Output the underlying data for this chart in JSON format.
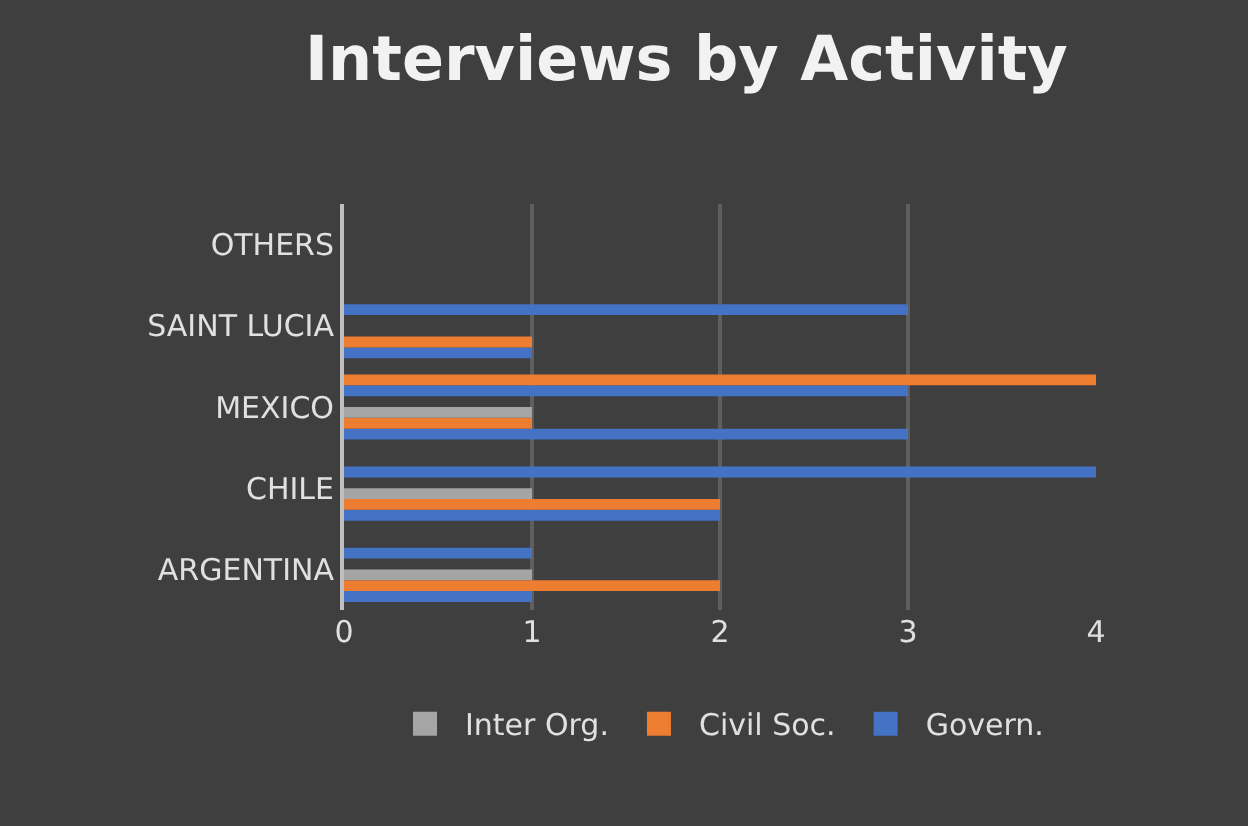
{
  "chart_data": {
    "type": "bar",
    "orientation": "horizontal",
    "title": "Interviews by Activity",
    "categories": [
      "OTHERS",
      "SAINT LUCIA",
      "MEXICO",
      "CHILE",
      "ARGENTINA"
    ],
    "series": [
      {
        "color": "#ed7d31",
        "values": [
          null,
          null,
          4,
          null,
          null
        ]
      },
      {
        "color": "#4472c4",
        "values": [
          null,
          3,
          3,
          4,
          1
        ]
      },
      {
        "values": [
          null,
          null,
          null,
          null,
          null
        ]
      },
      {
        "name": "Inter Org.",
        "color": "#a5a5a5",
        "values": [
          null,
          null,
          1,
          1,
          1
        ]
      },
      {
        "name": "Civil Soc.",
        "color": "#ed7d31",
        "values": [
          null,
          1,
          1,
          2,
          2
        ]
      },
      {
        "name": "Govern.",
        "color": "#4472c4",
        "values": [
          null,
          1,
          3,
          2,
          1
        ]
      }
    ],
    "xlim": [
      0,
      4
    ],
    "xticks": [
      0,
      1,
      2,
      3,
      4
    ],
    "grid": "x",
    "legend": "bottom"
  }
}
